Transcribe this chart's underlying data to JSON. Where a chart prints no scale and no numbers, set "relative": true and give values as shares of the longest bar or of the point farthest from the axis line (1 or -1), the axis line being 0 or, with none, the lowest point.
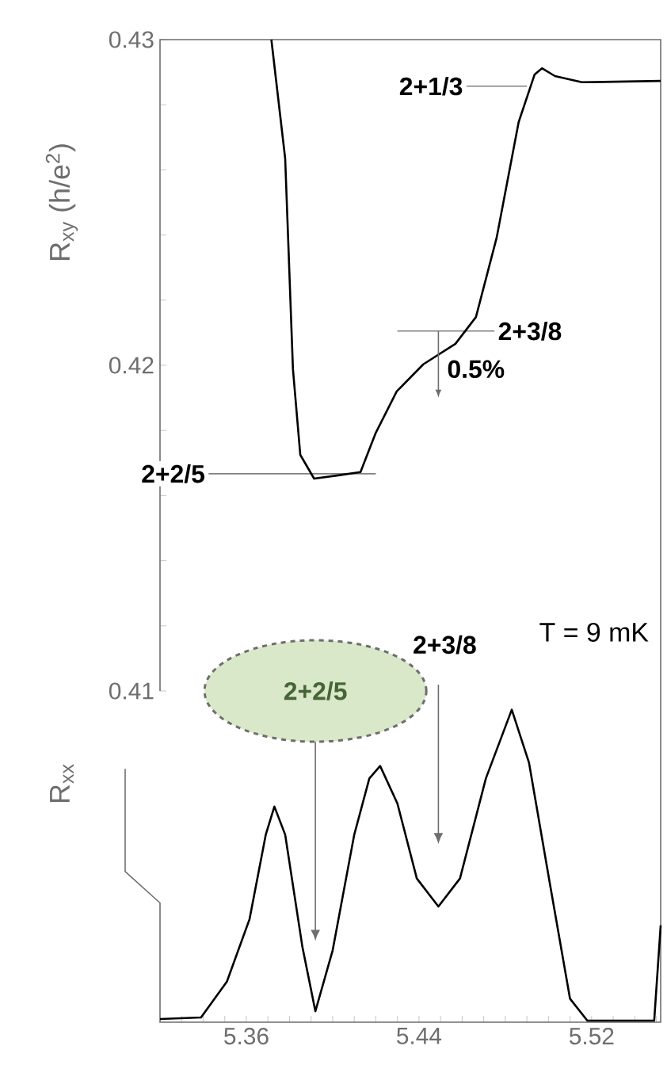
{
  "chart_data": [
    {
      "type": "line",
      "ylabel": "R$_{xy}$ (h/e$^{2}$)",
      "xlim": [
        5.32,
        5.552
      ],
      "ylim": [
        0.41,
        0.43
      ],
      "yticks": [
        0.41,
        {
          "value": 0.412,
          "label": null
        },
        {
          "value": 0.414,
          "label": null
        },
        {
          "value": 0.416,
          "label": null
        },
        {
          "value": 0.418,
          "label": null
        },
        0.42,
        {
          "value": 0.422,
          "label": null
        },
        {
          "value": 0.424,
          "label": null
        },
        {
          "value": 0.426,
          "label": null
        },
        {
          "value": 0.428,
          "label": null
        },
        0.43
      ],
      "tick_labels": "y",
      "series": [
        {
          "color": "#000000",
          "x": [
            5.3716,
            5.378,
            5.3816,
            5.385,
            5.3914,
            5.4026,
            5.4129,
            5.42,
            5.4297,
            5.442,
            5.4569,
            5.4664,
            5.476,
            5.4862,
            5.4936,
            5.497,
            5.503,
            5.5155,
            5.552
          ],
          "values": [
            0.43,
            0.42635,
            0.41988,
            0.41725,
            0.41652,
            0.41662,
            0.41672,
            0.41793,
            0.4192,
            0.42003,
            0.42066,
            0.42148,
            0.42392,
            0.42747,
            0.42893,
            0.42912,
            0.42888,
            0.42869,
            0.42873
          ]
        }
      ],
      "ref_lines": [
        {
          "axis": "y",
          "value": 0.42857,
          "color": "#808080"
        },
        {
          "axis": "y",
          "value": 0.42105,
          "color": "#808080"
        },
        {
          "axis": "y",
          "value": 0.41667,
          "color": "#808080"
        }
      ],
      "annotations": [
        {
          "text": "2+1/3",
          "x": 5.462,
          "y": 0.42857
        },
        {
          "text": "2+3/8",
          "x": 5.475,
          "y": 0.42105
        },
        {
          "text": "2+2/5",
          "x": 5.3425,
          "y": 0.41667
        },
        "0.5%",
        "T = 9 mK"
      ]
    },
    {
      "type": "line",
      "ylabel": "R$_{xx}$",
      "relative": true,
      "xlim": [
        5.32,
        5.552
      ],
      "xticks": [
        {
          "value": 5.33,
          "label": null
        },
        {
          "value": 5.34,
          "label": null
        },
        {
          "value": 5.35,
          "label": null
        },
        5.36,
        {
          "value": 5.37,
          "label": null
        },
        {
          "value": 5.38,
          "label": null
        },
        {
          "value": 5.39,
          "label": null
        },
        {
          "value": 5.4,
          "label": null
        },
        {
          "value": 5.41,
          "label": null
        },
        {
          "value": 5.42,
          "label": null
        },
        {
          "value": 5.43,
          "label": null
        },
        5.44,
        {
          "value": 5.45,
          "label": null
        },
        {
          "value": 5.46,
          "label": null
        },
        {
          "value": 5.47,
          "label": null
        },
        {
          "value": 5.48,
          "label": null
        },
        {
          "value": 5.49,
          "label": null
        },
        {
          "value": 5.5,
          "label": null
        },
        {
          "value": 5.51,
          "label": null
        },
        5.52,
        {
          "value": 5.53,
          "label": null
        },
        {
          "value": 5.54,
          "label": null
        },
        {
          "value": 5.55,
          "label": null
        }
      ],
      "tick_labels": "x",
      "series": [
        {
          "color": "#000000",
          "x": [
            5.32,
            5.339,
            5.351,
            5.3615,
            5.369,
            5.373,
            5.378,
            5.386,
            5.392,
            5.4,
            5.41,
            5.417,
            5.422,
            5.43,
            5.439,
            5.449,
            5.459,
            5.471,
            5.483,
            5.491,
            5.501,
            5.51,
            5.518,
            5.549,
            5.552
          ],
          "values": [
            0.01,
            0.015,
            0.13,
            0.33,
            0.6,
            0.69,
            0.6,
            0.24,
            0.035,
            0.23,
            0.6,
            0.78,
            0.82,
            0.7,
            0.46,
            0.37,
            0.46,
            0.78,
            1.0,
            0.83,
            0.43,
            0.075,
            0.005,
            0.005,
            0.31
          ]
        }
      ],
      "annotations": [
        "2+2/5",
        "2+3/8"
      ]
    }
  ]
}
